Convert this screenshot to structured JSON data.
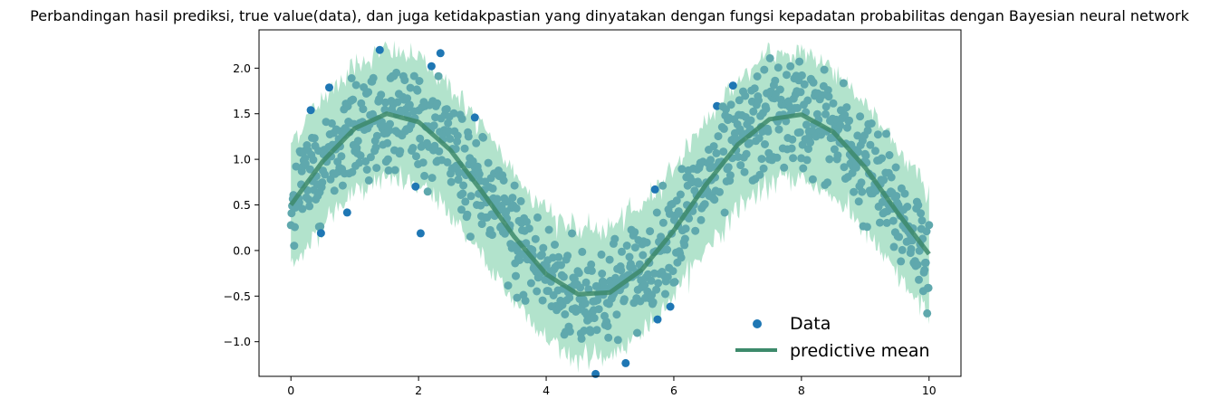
{
  "chart_data": {
    "type": "scatter",
    "title": "Perbandingan hasil prediksi, true value(data), dan juga ketidakpastian yang dinyatakan dengan fungsi kepadatan probabilitas dengan Bayesian neural network",
    "xlabel": "",
    "ylabel": "",
    "xlim": [
      -0.5,
      10.5
    ],
    "ylim": [
      -1.38,
      2.42
    ],
    "xticks": [
      "0",
      "2",
      "4",
      "6",
      "8",
      "10"
    ],
    "xtick_values": [
      0,
      2,
      4,
      6,
      8,
      10
    ],
    "yticks": [
      "−1.0",
      "−0.5",
      "0.0",
      "0.5",
      "1.0",
      "1.5",
      "2.0"
    ],
    "ytick_values": [
      -1.0,
      -0.5,
      0.0,
      0.5,
      1.0,
      1.5,
      2.0
    ],
    "grid": false,
    "legend_position": "lower-right",
    "colors": {
      "data": "#1f77b4",
      "data_overlay": "#5fa8ad",
      "mean": "#3d8a6b",
      "band": "#7fd0aa"
    },
    "series": [
      {
        "name": "Data",
        "kind": "scatter",
        "count": 1000,
        "x_range": [
          0,
          10
        ],
        "y_function": "sin(x) + 0.5",
        "noise_sd": 0.3
      },
      {
        "name": "predictive mean",
        "kind": "line",
        "x": [
          0,
          0.5,
          1,
          1.5,
          2,
          2.5,
          3,
          3.5,
          4,
          4.5,
          5,
          5.5,
          6,
          6.5,
          7,
          7.5,
          8,
          8.5,
          9,
          9.5,
          10
        ],
        "y": [
          0.5,
          0.98,
          1.34,
          1.5,
          1.41,
          1.1,
          0.64,
          0.15,
          -0.26,
          -0.48,
          -0.46,
          -0.21,
          0.22,
          0.72,
          1.16,
          1.44,
          1.49,
          1.3,
          0.91,
          0.42,
          -0.04
        ]
      },
      {
        "name": "uncertainty band",
        "kind": "band",
        "half_width": 0.7
      }
    ],
    "legend": [
      {
        "label": "Data",
        "marker": "dot"
      },
      {
        "label": "predictive mean",
        "marker": "line"
      }
    ]
  }
}
